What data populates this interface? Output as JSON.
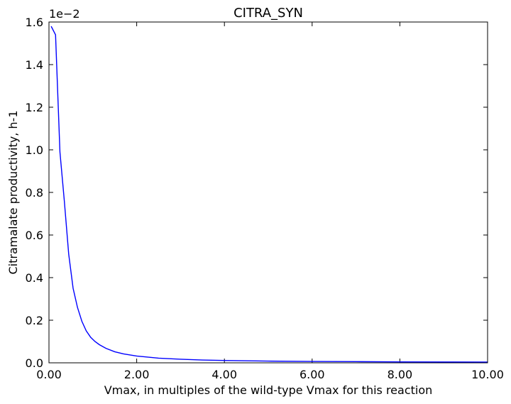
{
  "chart_data": {
    "type": "line",
    "title": "CITRA_SYN",
    "xlabel": "Vmax, in multiples of the wild-type Vmax for this reaction",
    "ylabel": "Citramalate productivity, h-1",
    "y_offset_label": "1e−2",
    "xlim": [
      0,
      10
    ],
    "ylim": [
      0,
      1.6
    ],
    "x_ticks": [
      "0.00",
      "2.00",
      "4.00",
      "6.00",
      "8.00",
      "10.00"
    ],
    "y_ticks": [
      "0.0",
      "0.2",
      "0.4",
      "0.6",
      "0.8",
      "1.0",
      "1.2",
      "1.4",
      "1.6"
    ],
    "grid": false,
    "series": [
      {
        "color": "#0000ff",
        "x": [
          0.05,
          0.15,
          0.25,
          0.35,
          0.45,
          0.55,
          0.65,
          0.75,
          0.85,
          0.95,
          1.05,
          1.15,
          1.3,
          1.5,
          1.7,
          2.0,
          2.5,
          3.0,
          3.5,
          4.0,
          5.0,
          6.0,
          7.0,
          8.0,
          9.0,
          10.0
        ],
        "y": [
          1.58,
          1.54,
          0.99,
          0.76,
          0.51,
          0.35,
          0.26,
          0.195,
          0.15,
          0.12,
          0.1,
          0.085,
          0.068,
          0.052,
          0.042,
          0.032,
          0.022,
          0.017,
          0.013,
          0.011,
          0.008,
          0.0065,
          0.0055,
          0.0045,
          0.004,
          0.0035
        ]
      }
    ]
  }
}
